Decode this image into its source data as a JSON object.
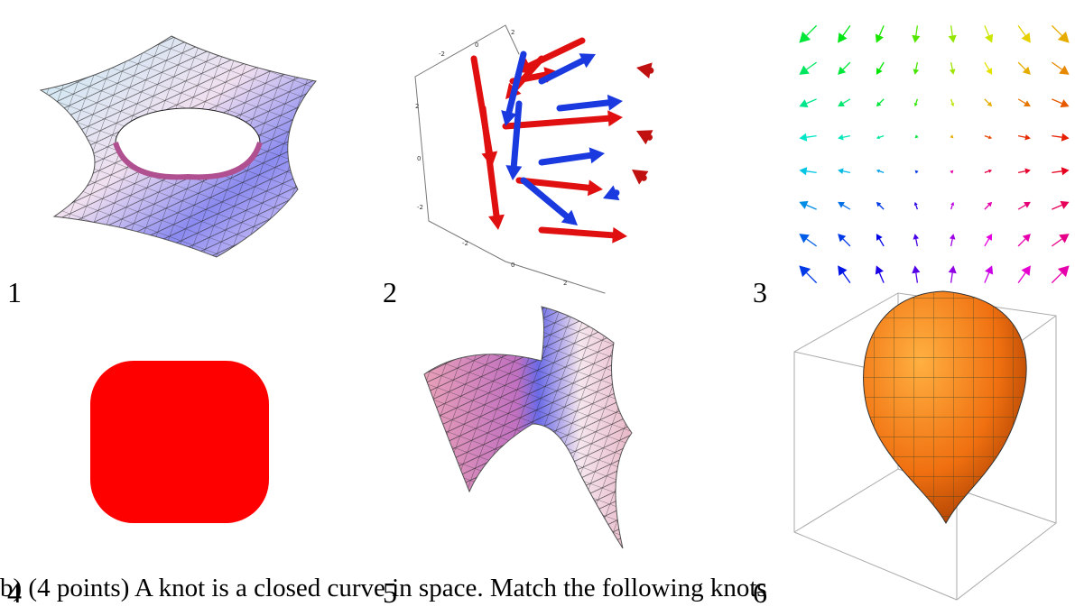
{
  "panels": [
    {
      "label": "1"
    },
    {
      "label": "2"
    },
    {
      "label": "3"
    },
    {
      "label": "4"
    },
    {
      "label": "5"
    },
    {
      "label": "6"
    }
  ],
  "panel_2_ticks": [
    "2",
    "-2",
    "0",
    "2",
    "0",
    "-2",
    "-2",
    "0",
    "2"
  ],
  "text": "b) (4 points) A knot is a closed curve in space. Match the following knots"
}
